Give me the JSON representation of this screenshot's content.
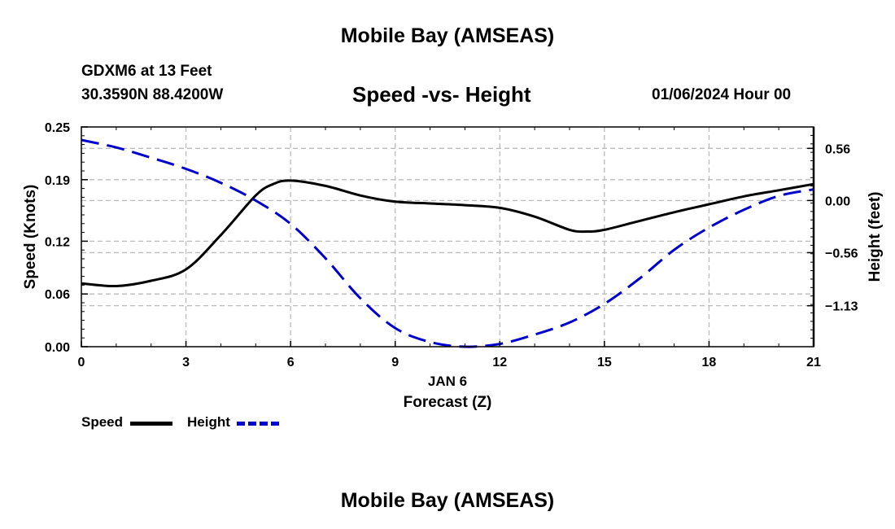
{
  "header": {
    "title": "Mobile Bay (AMSEAS)",
    "station_line1": "GDXM6 at 13 Feet",
    "station_line2": "30.3590N  88.4200W",
    "chart_title": "Speed -vs- Height",
    "datetime": "01/06/2024 Hour 00"
  },
  "footer": {
    "title": "Mobile Bay (AMSEAS)"
  },
  "legend": {
    "items": [
      {
        "label": "Speed",
        "color": "#000000",
        "style": "solid"
      },
      {
        "label": "Height",
        "color": "#0000cc",
        "style": "dashed"
      }
    ]
  },
  "chart_data": {
    "type": "line",
    "xlabel": "Forecast (Z)",
    "x_date_label": "JAN 6",
    "x_ticks": [
      0,
      3,
      6,
      9,
      12,
      15,
      18,
      21
    ],
    "xlim": [
      0,
      21
    ],
    "y_left": {
      "label": "Speed (Knots)",
      "lim": [
        0,
        0.25
      ],
      "ticks": [
        0,
        0.06,
        0.12,
        0.19,
        0.25
      ],
      "tick_labels": [
        "0.00",
        "0.06",
        "0.12",
        "0.19",
        "0.25"
      ]
    },
    "y_right": {
      "label": "Height (feet)",
      "lim": [
        -1.57,
        0.79
      ],
      "ticks": [
        -1.13,
        -0.56,
        0.0,
        0.56
      ],
      "tick_labels": [
        "−1.13",
        "−0.56",
        "0.00",
        "0.56"
      ]
    },
    "grid": true,
    "series": [
      {
        "name": "Speed",
        "axis": "left",
        "color": "#000000",
        "style": "solid",
        "x": [
          0,
          1,
          2,
          3,
          4,
          5,
          5.5,
          6,
          7,
          8,
          9,
          10,
          11,
          12,
          13,
          14,
          14.5,
          15,
          16,
          17,
          18,
          19,
          20,
          21
        ],
        "y": [
          0.072,
          0.069,
          0.075,
          0.088,
          0.127,
          0.172,
          0.185,
          0.189,
          0.183,
          0.172,
          0.165,
          0.163,
          0.161,
          0.158,
          0.148,
          0.133,
          0.131,
          0.133,
          0.143,
          0.153,
          0.162,
          0.171,
          0.178,
          0.185
        ]
      },
      {
        "name": "Height",
        "axis": "right",
        "color": "#0000cc",
        "style": "dashed",
        "x": [
          0,
          1,
          2,
          3,
          4,
          5,
          6,
          7,
          8,
          9,
          10,
          11,
          12,
          13,
          14,
          15,
          16,
          17,
          18,
          19,
          20,
          21
        ],
        "y": [
          0.65,
          0.57,
          0.46,
          0.34,
          0.19,
          0.0,
          -0.25,
          -0.62,
          -1.05,
          -1.37,
          -1.52,
          -1.57,
          -1.54,
          -1.44,
          -1.31,
          -1.11,
          -0.84,
          -0.53,
          -0.29,
          -0.1,
          0.05,
          0.12
        ]
      }
    ]
  }
}
